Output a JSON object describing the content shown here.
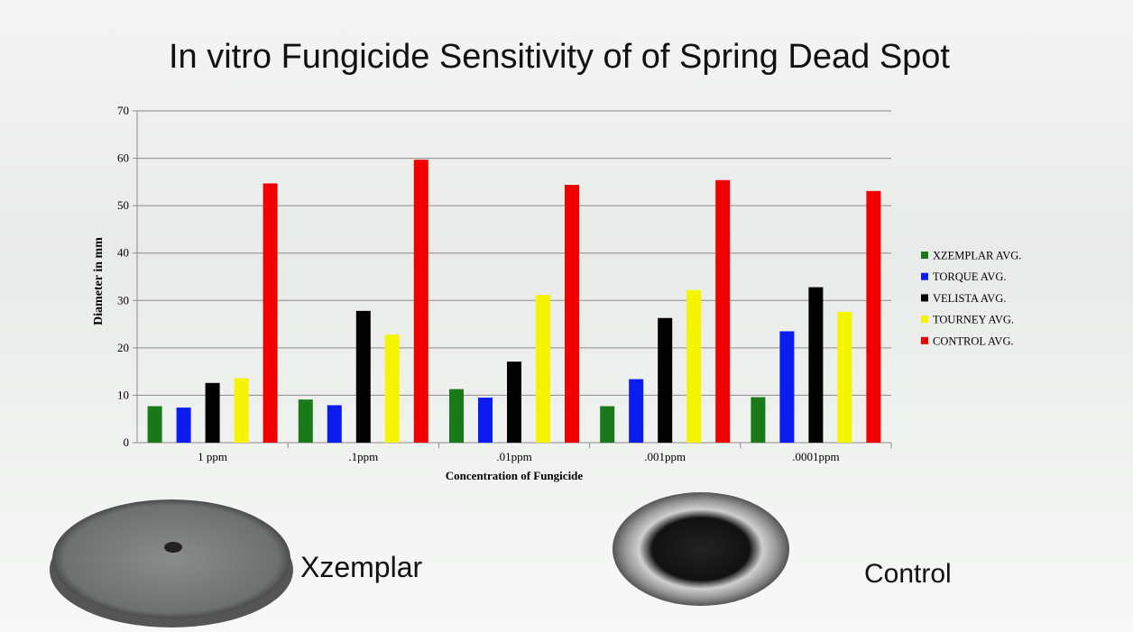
{
  "chart_data": {
    "type": "bar",
    "title": "In vitro Fungicide Sensitivity of  of Spring Dead Spot",
    "x_label": "Concentration of Fungicide",
    "y_label": "Diameter in mm",
    "categories": [
      "1 ppm",
      ".1ppm",
      ".01ppm",
      ".001ppm",
      ".0001ppm"
    ],
    "series": [
      {
        "name": "XZEMPLAR AVG.",
        "color": "#1a7a1a",
        "values": [
          7.7,
          9.1,
          11.3,
          7.7,
          9.6
        ]
      },
      {
        "name": "TORQUE AVG.",
        "color": "#0a1cf0",
        "values": [
          7.4,
          7.9,
          9.5,
          13.4,
          23.5
        ]
      },
      {
        "name": "VELISTA AVG.",
        "color": "#000000",
        "values": [
          12.6,
          27.8,
          17.1,
          26.3,
          32.8
        ]
      },
      {
        "name": "TOURNEY AVG.",
        "color": "#f5f500",
        "values": [
          13.6,
          22.8,
          31.2,
          32.2,
          27.6
        ]
      },
      {
        "name": "CONTROL AVG.",
        "color": "#f20000",
        "values": [
          54.7,
          59.7,
          54.4,
          55.4,
          53.1
        ]
      }
    ],
    "ylim": [
      0,
      70
    ],
    "yticks": [
      0,
      10,
      20,
      30,
      40,
      50,
      60,
      70
    ],
    "grid": true,
    "legend": "right"
  },
  "image_captions": [
    "Xzemplar",
    "Control"
  ]
}
